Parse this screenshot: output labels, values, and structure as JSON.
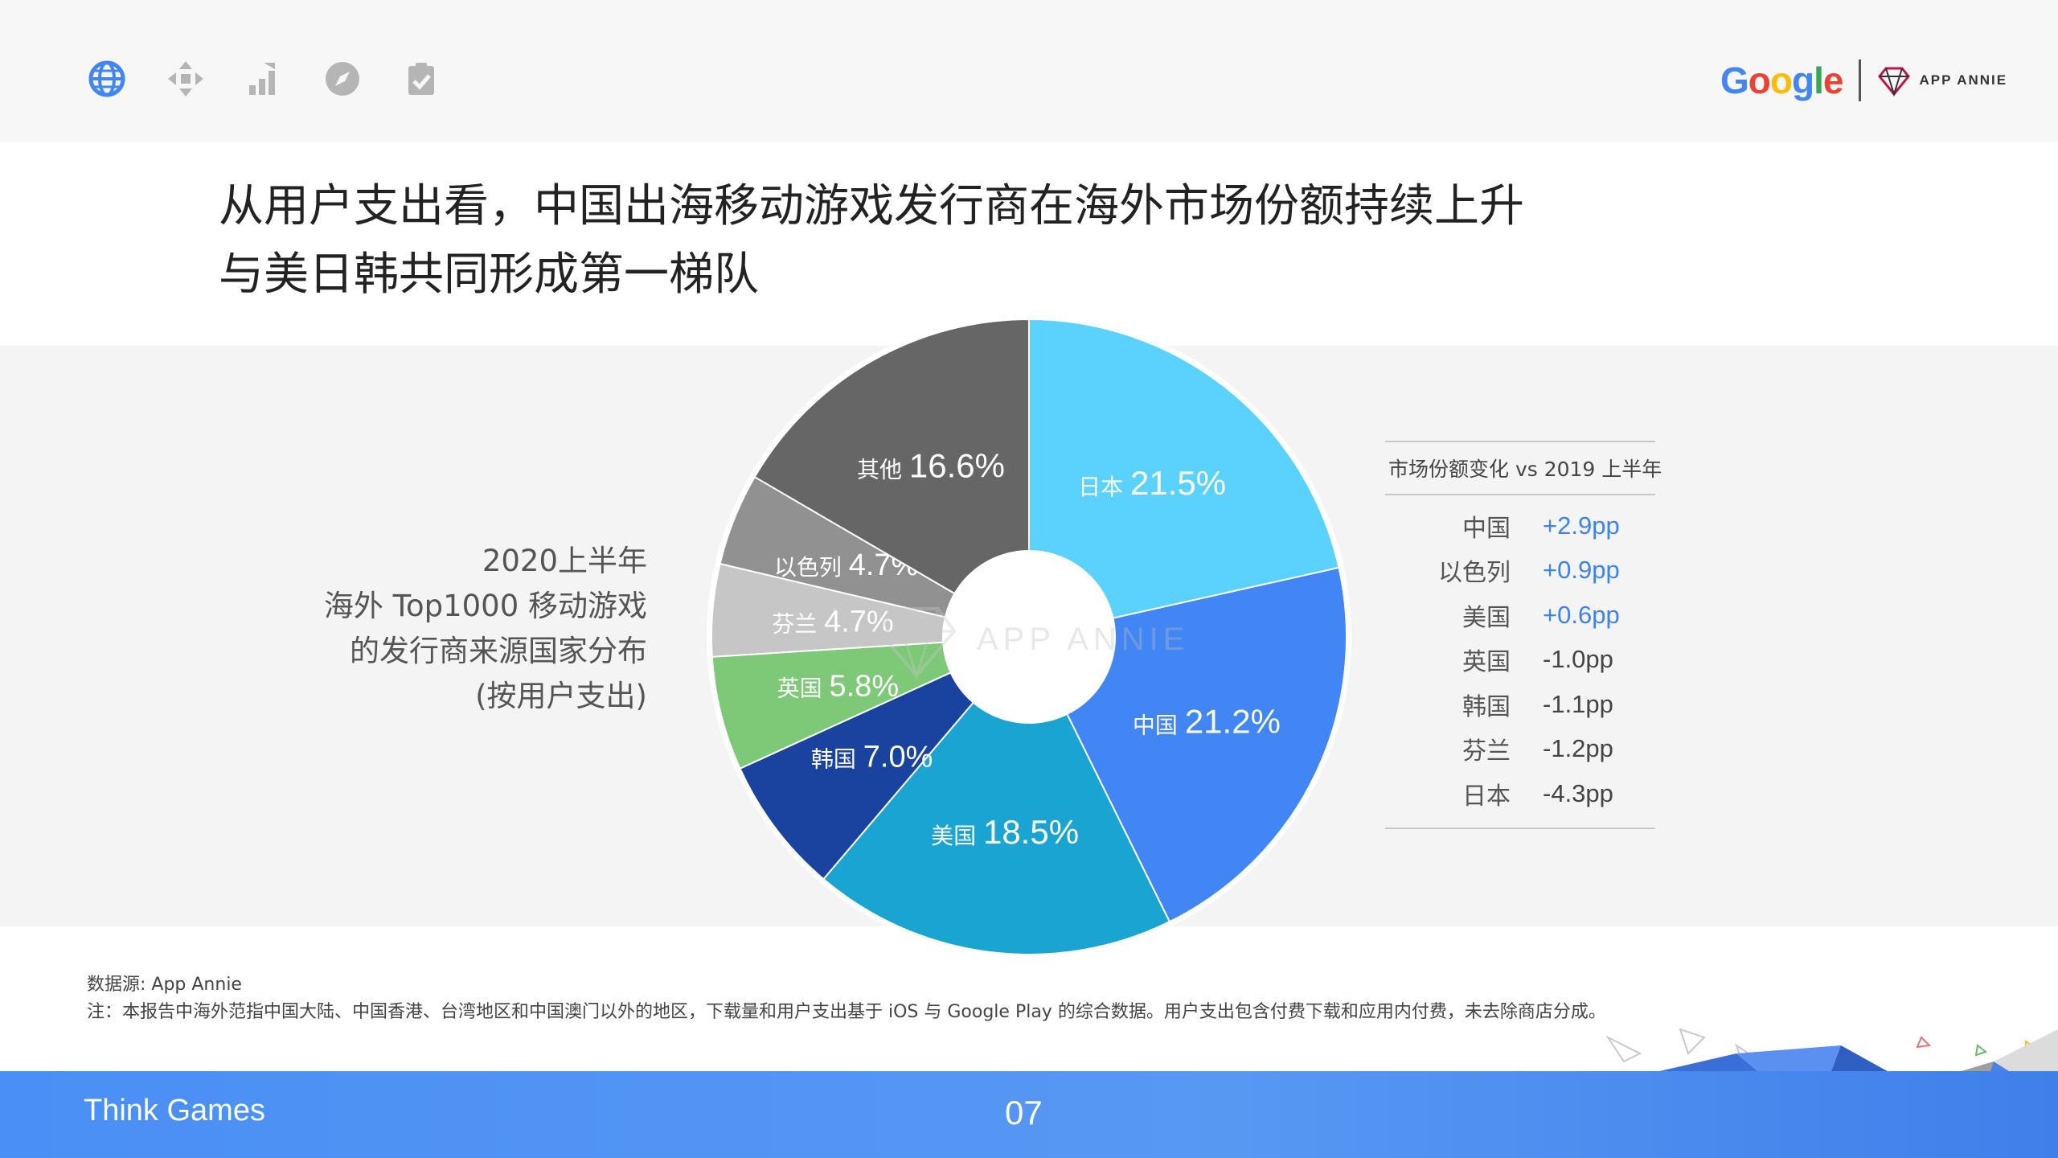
{
  "nav": {
    "icons": [
      "globe-icon",
      "move-arrows-icon",
      "bar-chart-icon",
      "compass-icon",
      "clipboard-check-icon"
    ],
    "active_color": "#4285f4",
    "inactive_color": "#b5b5b5"
  },
  "brand": {
    "google": "Google",
    "app_annie": "APP ANNIE"
  },
  "title": {
    "line1": "从用户支出看，中国出海移动游戏发行商在海外市场份额持续上升",
    "line2": "与美日韩共同形成第一梯队"
  },
  "side_label": {
    "line1": "2020上半年",
    "line2": "海外 Top1000 移动游戏",
    "line3": "的发行商来源国家分布",
    "line4": "(按用户支出)"
  },
  "watermark": "APP ANNIE",
  "chart_data": {
    "type": "pie",
    "donut": true,
    "slices": [
      {
        "label": "日本",
        "value": 21.5,
        "display": "21.5%",
        "color": "#5bd1fd"
      },
      {
        "label": "中国",
        "value": 21.2,
        "display": "21.2%",
        "color": "#4285f4"
      },
      {
        "label": "美国",
        "value": 18.5,
        "display": "18.5%",
        "color": "#1aa4d2"
      },
      {
        "label": "韩国",
        "value": 7.0,
        "display": "7.0%",
        "color": "#1a43a0"
      },
      {
        "label": "英国",
        "value": 5.8,
        "display": "5.8%",
        "color": "#7ec978"
      },
      {
        "label": "芬兰",
        "value": 4.7,
        "display": "4.7%",
        "color": "#c6c6c6"
      },
      {
        "label": "以色列",
        "value": 4.7,
        "display": "4.7%",
        "color": "#919191"
      },
      {
        "label": "其他",
        "value": 16.6,
        "display": "16.6%",
        "color": "#666666"
      }
    ]
  },
  "change_table": {
    "header": "市场份额变化 vs 2019 上半年",
    "rows": [
      {
        "country": "中国",
        "value": "+2.9pp",
        "positive": true
      },
      {
        "country": "以色列",
        "value": "+0.9pp",
        "positive": true
      },
      {
        "country": "美国",
        "value": "+0.6pp",
        "positive": true
      },
      {
        "country": "英国",
        "value": "-1.0pp",
        "positive": false
      },
      {
        "country": "韩国",
        "value": "-1.1pp",
        "positive": false
      },
      {
        "country": "芬兰",
        "value": "-1.2pp",
        "positive": false
      },
      {
        "country": "日本",
        "value": "-4.3pp",
        "positive": false
      }
    ]
  },
  "source": {
    "line1": "数据源: App Annie",
    "line2": "注：本报告中海外范指中国大陆、中国香港、台湾地区和中国澳门以外的地区，下载量和用户支出基于 iOS 与 Google Play 的综合数据。用户支出包含付费下载和应用内付费，未去除商店分成。"
  },
  "footer": {
    "left": "Think Games",
    "page": "07"
  }
}
